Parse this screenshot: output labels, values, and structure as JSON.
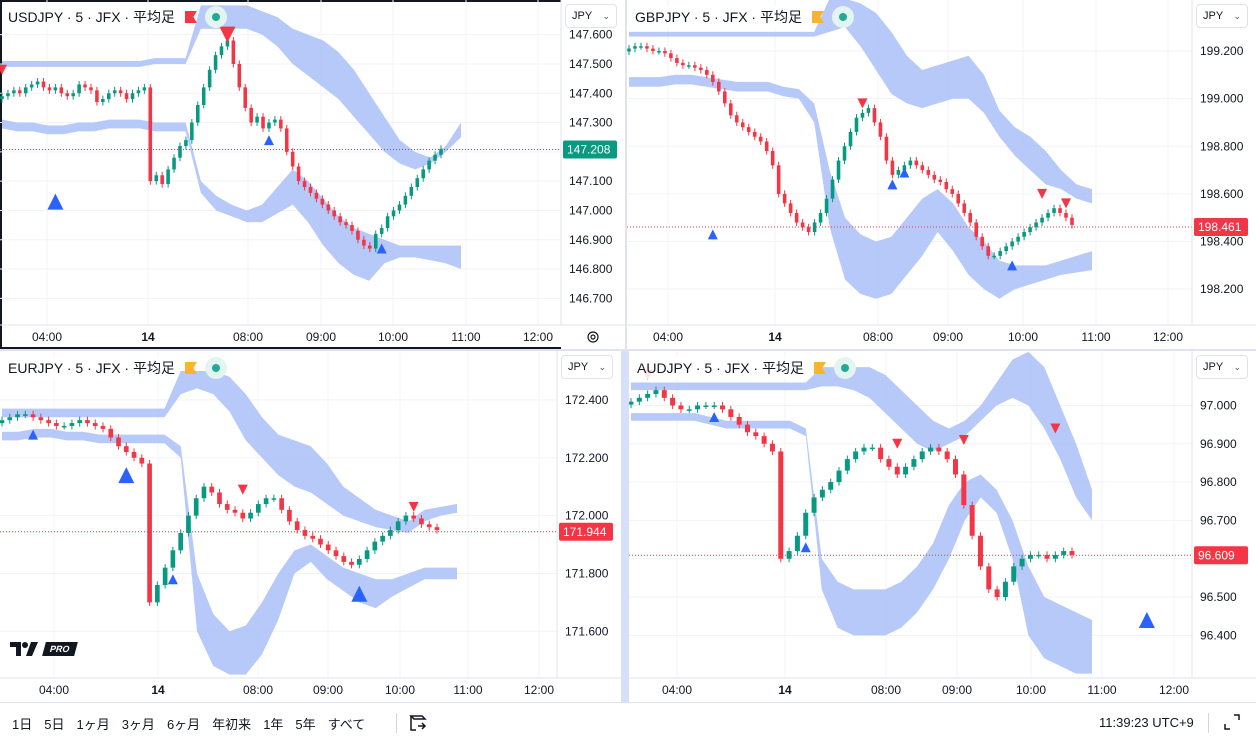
{
  "bottombar": {
    "ranges": [
      "1日",
      "5日",
      "1ヶ月",
      "3ヶ月",
      "6ヶ月",
      "年初来",
      "1年",
      "5年",
      "すべて"
    ],
    "clock": "11:39:23 UTC+9"
  },
  "colors": {
    "up": "#089981",
    "down": "#f23645",
    "band": "#a9bff8",
    "marker_up": "#2962ff",
    "marker_down": "#f23645"
  },
  "charts": [
    {
      "title": "USDJPY · 5 · JFX · 平均足",
      "flag": "red",
      "currency": "JPY",
      "active": true,
      "last_price": "147.208",
      "last_color": "#089981",
      "ylabels": [
        "147.600",
        "147.500",
        "147.400",
        "147.300",
        "147.200",
        "147.100",
        "147.000",
        "146.900",
        "146.800",
        "146.700"
      ],
      "ymin": 146.65,
      "ymax": 147.65,
      "xlabels": [
        "04:00",
        "14",
        "08:00",
        "09:00",
        "10:00",
        "11:00",
        "12:00"
      ],
      "series": [
        147.39,
        147.4,
        147.41,
        147.4,
        147.42,
        147.43,
        147.44,
        147.42,
        147.41,
        147.42,
        147.4,
        147.39,
        147.4,
        147.43,
        147.42,
        147.41,
        147.37,
        147.38,
        147.4,
        147.41,
        147.4,
        147.38,
        147.4,
        147.41,
        147.42,
        147.1,
        147.12,
        147.09,
        147.14,
        147.18,
        147.22,
        147.24,
        147.3,
        147.36,
        147.42,
        147.48,
        147.53,
        147.56,
        147.58,
        147.5,
        147.42,
        147.35,
        147.3,
        147.32,
        147.28,
        147.3,
        147.31,
        147.28,
        147.2,
        147.15,
        147.1,
        147.08,
        147.06,
        147.04,
        147.02,
        147.0,
        146.98,
        146.96,
        146.95,
        146.93,
        146.9,
        146.88,
        146.87,
        146.92,
        146.94,
        146.98,
        147.0,
        147.02,
        147.05,
        147.08,
        147.11,
        147.14,
        147.17,
        147.19,
        147.21
      ],
      "band_upper": [
        [
          147.51,
          147.51,
          147.51,
          147.51,
          147.51,
          147.51,
          147.51,
          147.51,
          147.51,
          147.51,
          147.52,
          147.52,
          147.52,
          147.7,
          147.7,
          147.7,
          147.7,
          147.68,
          147.66,
          147.62,
          147.6,
          147.58,
          147.54,
          147.48,
          147.4,
          147.32,
          147.24,
          147.2,
          147.18,
          147.22,
          147.3
        ],
        [
          147.49,
          147.49,
          147.49,
          147.49,
          147.49,
          147.49,
          147.49,
          147.49,
          147.49,
          147.49,
          147.5,
          147.5,
          147.5,
          147.62,
          147.62,
          147.62,
          147.62,
          147.6,
          147.56,
          147.5,
          147.46,
          147.42,
          147.38,
          147.32,
          147.26,
          147.2,
          147.16,
          147.14,
          147.16,
          147.2,
          147.25
        ]
      ],
      "band_lower": [
        [
          147.31,
          147.3,
          147.3,
          147.29,
          147.29,
          147.3,
          147.3,
          147.31,
          147.31,
          147.31,
          147.3,
          147.3,
          147.3,
          147.1,
          147.05,
          147.02,
          147.0,
          147.02,
          147.08,
          147.14,
          147.1,
          147.04,
          146.98,
          146.94,
          146.92,
          146.9,
          146.88,
          146.88,
          146.88,
          146.88,
          146.88
        ],
        [
          147.28,
          147.27,
          147.27,
          147.26,
          147.26,
          147.27,
          147.27,
          147.28,
          147.28,
          147.28,
          147.27,
          147.27,
          147.27,
          147.06,
          147.0,
          146.98,
          146.96,
          146.96,
          146.99,
          147.02,
          146.96,
          146.88,
          146.82,
          146.78,
          146.76,
          146.82,
          146.84,
          146.84,
          146.83,
          146.82,
          146.8
        ]
      ],
      "markers": [
        {
          "i": 0,
          "v": 147.48,
          "dir": "down",
          "big": false
        },
        {
          "i": 9,
          "v": 147.03,
          "dir": "up",
          "big": true
        },
        {
          "i": 38,
          "v": 147.6,
          "dir": "down",
          "big": true
        },
        {
          "i": 45,
          "v": 147.24,
          "dir": "up",
          "big": false
        },
        {
          "i": 64,
          "v": 146.87,
          "dir": "up",
          "big": false
        }
      ]
    },
    {
      "title": "GBPJPY · 5 · JFX · 平均足",
      "flag": "yellow",
      "currency": "JPY",
      "active": false,
      "last_price": "198.461",
      "last_color": "#f23645",
      "ylabels": [
        "199.200",
        "199.000",
        "198.800",
        "198.600",
        "198.400",
        "198.200"
      ],
      "ymin": 198.1,
      "ymax": 199.33,
      "xlabels": [
        "04:00",
        "14",
        "08:00",
        "09:00",
        "10:00",
        "11:00",
        "12:00"
      ],
      "series": [
        199.21,
        199.22,
        199.22,
        199.21,
        199.2,
        199.2,
        199.19,
        199.17,
        199.15,
        199.14,
        199.14,
        199.13,
        199.12,
        199.1,
        199.07,
        199.03,
        198.98,
        198.93,
        198.9,
        198.88,
        198.86,
        198.84,
        198.82,
        198.78,
        198.72,
        198.6,
        198.56,
        198.52,
        198.48,
        198.46,
        198.44,
        198.48,
        198.52,
        198.58,
        198.66,
        198.74,
        198.8,
        198.86,
        198.92,
        198.94,
        198.96,
        198.9,
        198.84,
        198.74,
        198.68,
        198.7,
        198.72,
        198.74,
        198.72,
        198.7,
        198.68,
        198.66,
        198.65,
        198.62,
        198.6,
        198.56,
        198.52,
        198.48,
        198.42,
        198.38,
        198.34,
        198.34,
        198.36,
        198.38,
        198.4,
        198.42,
        198.44,
        198.46,
        198.48,
        198.5,
        198.52,
        198.54,
        198.52,
        198.5,
        198.47
      ],
      "band_upper": [
        [
          199.28,
          199.28,
          199.28,
          199.28,
          199.28,
          199.28,
          199.28,
          199.28,
          199.28,
          199.28,
          199.28,
          199.28,
          199.28,
          199.42,
          199.42,
          199.4,
          199.36,
          199.28,
          199.18,
          199.12,
          199.14,
          199.16,
          199.18,
          199.1,
          198.95,
          198.88,
          198.84,
          198.78,
          198.7,
          198.64,
          198.62
        ],
        [
          199.26,
          199.26,
          199.26,
          199.26,
          199.26,
          199.26,
          199.26,
          199.26,
          199.26,
          199.26,
          199.26,
          199.26,
          199.26,
          199.28,
          199.3,
          199.22,
          199.12,
          199.02,
          198.98,
          198.96,
          198.98,
          199.0,
          199.0,
          198.94,
          198.84,
          198.76,
          198.7,
          198.64,
          198.62,
          198.58,
          198.56
        ]
      ],
      "band_lower": [
        [
          199.09,
          199.09,
          199.09,
          199.1,
          199.1,
          199.09,
          199.08,
          199.07,
          199.07,
          199.07,
          199.05,
          199.04,
          198.98,
          198.7,
          198.5,
          198.43,
          198.4,
          198.42,
          198.5,
          198.58,
          198.62,
          198.56,
          198.46,
          198.4,
          198.32,
          198.3,
          198.3,
          198.3,
          198.32,
          198.34,
          198.36
        ],
        [
          199.05,
          199.05,
          199.05,
          199.06,
          199.06,
          199.05,
          199.04,
          199.03,
          199.03,
          199.03,
          199.01,
          199.0,
          198.9,
          198.46,
          198.24,
          198.18,
          198.16,
          198.18,
          198.26,
          198.34,
          198.44,
          198.36,
          198.26,
          198.2,
          198.16,
          198.2,
          198.22,
          198.24,
          198.26,
          198.27,
          198.28
        ]
      ],
      "markers": [
        {
          "i": 14,
          "v": 198.43,
          "dir": "up",
          "big": false
        },
        {
          "i": 39,
          "v": 198.98,
          "dir": "down",
          "big": false
        },
        {
          "i": 44,
          "v": 198.64,
          "dir": "up",
          "big": false
        },
        {
          "i": 46,
          "v": 198.69,
          "dir": "up",
          "big": false
        },
        {
          "i": 64,
          "v": 198.3,
          "dir": "up",
          "big": false
        },
        {
          "i": 69,
          "v": 198.6,
          "dir": "down",
          "big": false
        },
        {
          "i": 73,
          "v": 198.56,
          "dir": "down",
          "big": false
        }
      ]
    },
    {
      "title": "EURJPY · 5 · JFX · 平均足",
      "flag": "yellow",
      "currency": "JPY",
      "active": false,
      "last_price": "171.944",
      "last_color": "#f23645",
      "ylabels": [
        "172.400",
        "172.200",
        "172.000",
        "171.800",
        "171.600"
      ],
      "ymin": 171.48,
      "ymax": 172.5,
      "xlabels": [
        "04:00",
        "14",
        "08:00",
        "09:00",
        "10:00",
        "11:00",
        "12:00"
      ],
      "series": [
        172.33,
        172.34,
        172.35,
        172.35,
        172.34,
        172.33,
        172.32,
        172.31,
        172.31,
        172.32,
        172.33,
        172.32,
        172.31,
        172.3,
        172.27,
        172.24,
        172.22,
        172.2,
        172.18,
        171.7,
        171.76,
        171.82,
        171.88,
        171.94,
        172.0,
        172.06,
        172.1,
        172.08,
        172.04,
        172.02,
        172.01,
        171.99,
        172.01,
        172.04,
        172.06,
        172.06,
        172.02,
        171.98,
        171.95,
        171.93,
        171.92,
        171.9,
        171.88,
        171.86,
        171.84,
        171.83,
        171.85,
        171.88,
        171.91,
        171.93,
        171.95,
        171.98,
        172.0,
        171.99,
        171.97,
        171.96,
        171.95
      ],
      "band_upper": [
        [
          172.37,
          172.37,
          172.37,
          172.37,
          172.37,
          172.37,
          172.37,
          172.37,
          172.37,
          172.37,
          172.37,
          172.5,
          172.5,
          172.5,
          172.48,
          172.42,
          172.34,
          172.28,
          172.26,
          172.24,
          172.18,
          172.1,
          172.06,
          172.02,
          172.0,
          171.98,
          172.02,
          172.03,
          172.04
        ],
        [
          172.34,
          172.34,
          172.34,
          172.34,
          172.34,
          172.34,
          172.34,
          172.34,
          172.34,
          172.34,
          172.34,
          172.42,
          172.44,
          172.42,
          172.36,
          172.26,
          172.2,
          172.14,
          172.1,
          172.08,
          172.04,
          172.0,
          171.98,
          171.96,
          171.95,
          171.94,
          171.98,
          172.0,
          172.01
        ]
      ],
      "band_lower": [
        [
          172.29,
          172.29,
          172.3,
          172.3,
          172.29,
          172.29,
          172.28,
          172.28,
          172.28,
          172.28,
          172.28,
          172.24,
          171.8,
          171.66,
          171.6,
          171.62,
          171.7,
          171.8,
          171.88,
          171.9,
          171.86,
          171.82,
          171.8,
          171.78,
          171.78,
          171.8,
          171.82,
          171.82,
          171.82
        ],
        [
          172.26,
          172.26,
          172.27,
          172.27,
          172.26,
          172.26,
          172.25,
          172.25,
          172.25,
          172.25,
          172.25,
          172.2,
          171.6,
          171.48,
          171.45,
          171.45,
          171.52,
          171.64,
          171.8,
          171.84,
          171.78,
          171.74,
          171.7,
          171.68,
          171.72,
          171.75,
          171.78,
          171.78,
          171.78
        ]
      ],
      "markers": [
        {
          "i": 4,
          "v": 172.28,
          "dir": "up",
          "big": false
        },
        {
          "i": 16,
          "v": 172.14,
          "dir": "up",
          "big": true
        },
        {
          "i": 22,
          "v": 171.78,
          "dir": "up",
          "big": false
        },
        {
          "i": 31,
          "v": 172.09,
          "dir": "down",
          "big": false
        },
        {
          "i": 46,
          "v": 171.73,
          "dir": "up",
          "big": true
        },
        {
          "i": 53,
          "v": 172.03,
          "dir": "down",
          "big": false
        }
      ]
    },
    {
      "title": "AUDJPY · 5 · JFX · 平均足",
      "flag": "yellow",
      "currency": "JPY",
      "active": false,
      "last_price": "96.609",
      "last_color": "#f23645",
      "ylabels": [
        "97.000",
        "96.900",
        "96.800",
        "96.700",
        "96.600",
        "96.500",
        "96.400"
      ],
      "ymin": 96.32,
      "ymax": 97.09,
      "xlabels": [
        "04:00",
        "14",
        "08:00",
        "09:00",
        "10:00",
        "11:00",
        "12:00"
      ],
      "series": [
        97.01,
        97.02,
        97.03,
        97.04,
        97.02,
        97.0,
        96.99,
        96.99,
        97.0,
        97.0,
        97.0,
        96.99,
        96.97,
        96.95,
        96.93,
        96.92,
        96.9,
        96.88,
        96.6,
        96.62,
        96.66,
        96.72,
        96.76,
        96.78,
        96.8,
        96.83,
        96.86,
        96.88,
        96.89,
        96.89,
        96.86,
        96.84,
        96.82,
        96.84,
        96.86,
        96.88,
        96.89,
        96.88,
        96.86,
        96.82,
        96.74,
        96.66,
        96.58,
        96.52,
        96.5,
        96.54,
        96.58,
        96.6,
        96.61,
        96.61,
        96.6,
        96.61,
        96.62,
        96.61
      ],
      "band_upper": [
        [
          97.06,
          97.06,
          97.06,
          97.06,
          97.06,
          97.06,
          97.06,
          97.06,
          97.06,
          97.06,
          97.06,
          97.06,
          97.1,
          97.1,
          97.1,
          97.1,
          97.08,
          97.04,
          97.0,
          96.96,
          96.94,
          96.96,
          97.0,
          97.06,
          97.12,
          97.14,
          97.1,
          97.0,
          96.9,
          96.78
        ],
        [
          97.04,
          97.04,
          97.04,
          97.04,
          97.04,
          97.04,
          97.04,
          97.04,
          97.04,
          97.04,
          97.04,
          97.04,
          97.05,
          97.05,
          97.04,
          97.02,
          96.98,
          96.94,
          96.9,
          96.88,
          96.9,
          96.92,
          96.96,
          97.0,
          97.02,
          97.0,
          96.94,
          96.86,
          96.76,
          96.7
        ]
      ],
      "band_lower": [
        [
          96.98,
          96.98,
          96.98,
          96.98,
          96.98,
          96.97,
          96.96,
          96.96,
          96.96,
          96.96,
          96.96,
          96.94,
          96.6,
          96.54,
          96.52,
          96.52,
          96.52,
          96.54,
          96.58,
          96.64,
          96.74,
          96.8,
          96.82,
          96.78,
          96.7,
          96.58,
          96.5,
          96.48,
          96.46,
          96.44
        ],
        [
          96.96,
          96.96,
          96.96,
          96.96,
          96.96,
          96.95,
          96.94,
          96.94,
          96.94,
          96.94,
          96.94,
          96.92,
          96.52,
          96.42,
          96.4,
          96.4,
          96.4,
          96.42,
          96.46,
          96.52,
          96.6,
          96.7,
          96.76,
          96.72,
          96.6,
          96.4,
          96.34,
          96.32,
          96.3,
          96.3
        ]
      ],
      "markers": [
        {
          "i": 2,
          "v": 97.08,
          "dir": "down",
          "big": false
        },
        {
          "i": 10,
          "v": 96.97,
          "dir": "up",
          "big": false
        },
        {
          "i": 21,
          "v": 96.63,
          "dir": "up",
          "big": false
        },
        {
          "i": 32,
          "v": 96.9,
          "dir": "down",
          "big": false
        },
        {
          "i": 40,
          "v": 96.91,
          "dir": "down",
          "big": false
        },
        {
          "i": 51,
          "v": 96.94,
          "dir": "down",
          "big": false
        },
        {
          "i": 62,
          "v": 96.44,
          "dir": "up",
          "big": true
        }
      ]
    }
  ]
}
